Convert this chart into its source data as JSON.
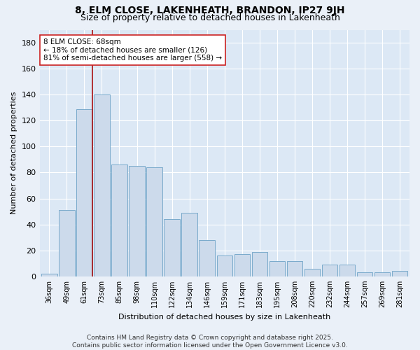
{
  "title": "8, ELM CLOSE, LAKENHEATH, BRANDON, IP27 9JH",
  "subtitle": "Size of property relative to detached houses in Lakenheath",
  "xlabel": "Distribution of detached houses by size in Lakenheath",
  "ylabel": "Number of detached properties",
  "bar_color": "#ccdaeb",
  "bar_edge_color": "#7aaacb",
  "background_color": "#dce8f5",
  "grid_color": "#ffffff",
  "annotation_text": "8 ELM CLOSE: 68sqm\n← 18% of detached houses are smaller (126)\n81% of semi-detached houses are larger (558) →",
  "vline_color": "#aa1111",
  "categories": [
    "36sqm",
    "49sqm",
    "61sqm",
    "73sqm",
    "85sqm",
    "98sqm",
    "110sqm",
    "122sqm",
    "134sqm",
    "146sqm",
    "159sqm",
    "171sqm",
    "183sqm",
    "195sqm",
    "208sqm",
    "220sqm",
    "232sqm",
    "244sqm",
    "257sqm",
    "269sqm",
    "281sqm"
  ],
  "values": [
    2,
    51,
    129,
    140,
    86,
    85,
    84,
    44,
    49,
    28,
    16,
    17,
    19,
    12,
    12,
    6,
    9,
    9,
    3,
    3,
    4
  ],
  "ylim": [
    0,
    190
  ],
  "yticks": [
    0,
    20,
    40,
    60,
    80,
    100,
    120,
    140,
    160,
    180
  ],
  "footer": "Contains HM Land Registry data © Crown copyright and database right 2025.\nContains public sector information licensed under the Open Government Licence v3.0.",
  "title_fontsize": 10,
  "subtitle_fontsize": 9,
  "axis_label_fontsize": 8,
  "tick_fontsize": 7,
  "footer_fontsize": 6.5,
  "annotation_fontsize": 7.5
}
